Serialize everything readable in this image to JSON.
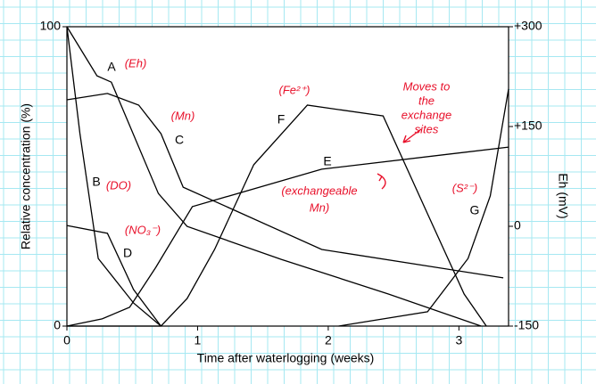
{
  "chart_data": {
    "type": "line",
    "xlabel": "Time after waterlogging (weeks)",
    "ylabel": "Relative concentration (%)",
    "y2label": "Eh (mV)",
    "xlim": [
      0,
      3.38
    ],
    "xticks": [
      0,
      1,
      2,
      3
    ],
    "ylim": [
      0,
      100
    ],
    "yticks": [
      0,
      100
    ],
    "y2lim": [
      -150,
      300
    ],
    "y2ticks": [
      {
        "value": 300,
        "label": "+300"
      },
      {
        "value": 150,
        "label": "+150"
      },
      0,
      -150
    ],
    "color": "#000000",
    "series": [
      {
        "name": "A",
        "x": [
          0,
          0.23,
          0.34,
          0.7,
          0.92,
          1.64,
          2.46,
          3.17
        ],
        "values": [
          100,
          83.6,
          81.5,
          44.3,
          33.3,
          22.3,
          10.7,
          0
        ]
      },
      {
        "name": "B",
        "x": [
          0,
          0.1,
          0.24,
          0.51,
          0.72
        ],
        "values": [
          100,
          64.3,
          22.6,
          7.7,
          0
        ]
      },
      {
        "name": "C",
        "x": [
          0,
          0.31,
          0.55,
          0.72,
          0.89,
          1.95,
          3.34
        ],
        "values": [
          75.6,
          77.7,
          73.8,
          64.3,
          46.4,
          25.6,
          16.1
        ]
      },
      {
        "name": "D",
        "x": [
          0,
          0.31,
          0.51,
          0.72
        ],
        "values": [
          33.6,
          31,
          12.2,
          0
        ]
      },
      {
        "name": "E",
        "x": [
          0,
          0.27,
          0.48,
          0.68,
          0.96,
          1.95,
          3.38
        ],
        "values": [
          0,
          2.4,
          6.3,
          19.6,
          39.9,
          52.4,
          59.8
        ]
      },
      {
        "name": "F",
        "x": [
          0,
          0.72,
          0.92,
          1.13,
          1.43,
          1.84,
          2.42,
          2.76,
          3.04,
          3.21
        ],
        "values": [
          0,
          0,
          9.2,
          25.6,
          53.9,
          73.8,
          70.2,
          37.5,
          10.7,
          0
        ]
      },
      {
        "name": "G",
        "x": [
          2.08,
          2.76,
          3.07,
          3.24,
          3.38
        ],
        "values": [
          0,
          4.8,
          22.6,
          43.5,
          79.2
        ]
      }
    ],
    "annotations": [
      "(Eh)",
      "(Mn)",
      "(Fe²⁺)",
      "(DO)",
      "(NO₃⁻)",
      "(exchangeable",
      "Mn)",
      "(S²⁻)",
      "Moves to",
      "the",
      "exchange",
      "sites"
    ],
    "annotation_color": "#e8102a"
  }
}
